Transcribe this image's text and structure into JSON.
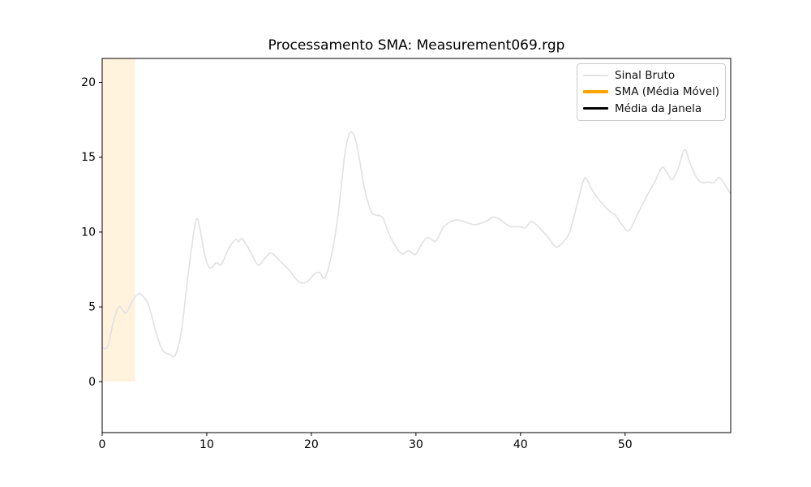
{
  "chart_data": {
    "type": "line",
    "title": "Processamento SMA: Measurement069.rgp",
    "xlabel": "",
    "ylabel": "",
    "xlim": [
      0,
      60.1
    ],
    "ylim": [
      -3.4,
      21.6
    ],
    "x_ticks": [
      0,
      10,
      20,
      30,
      40,
      50
    ],
    "y_ticks": [
      0,
      5,
      10,
      15,
      20
    ],
    "grid": false,
    "axis_color": "#000000",
    "legend": {
      "position": "upper right",
      "entries": [
        {
          "label": "Sinal Bruto",
          "color": "#e2e2e2",
          "thickness": 2
        },
        {
          "label": "SMA (Média Móvel)",
          "color": "#ffa500",
          "thickness": 4
        },
        {
          "label": "Média da Janela",
          "color": "#000000",
          "thickness": 3
        }
      ]
    },
    "window_band": {
      "x0": 0,
      "x1": 3.15,
      "y0": 0,
      "y1": 21.6,
      "color": "#ffa500",
      "opacity": 0.13
    },
    "series": [
      {
        "name": "Sinal Bruto",
        "color": "#e2e2e2",
        "width": 1.7,
        "points": [
          [
            0,
            2.3
          ],
          [
            0.25,
            2.2
          ],
          [
            0.6,
            2.5
          ],
          [
            1.1,
            4.1
          ],
          [
            1.6,
            5.0
          ],
          [
            2.0,
            4.75
          ],
          [
            2.3,
            4.6
          ],
          [
            2.9,
            5.4
          ],
          [
            3.5,
            5.9
          ],
          [
            3.9,
            5.7
          ],
          [
            4.3,
            5.35
          ],
          [
            4.7,
            4.5
          ],
          [
            5.1,
            3.4
          ],
          [
            5.5,
            2.55
          ],
          [
            5.9,
            2.0
          ],
          [
            6.4,
            1.85
          ],
          [
            7.0,
            1.8
          ],
          [
            7.6,
            3.5
          ],
          [
            8.1,
            6.5
          ],
          [
            8.6,
            9.2
          ],
          [
            9.0,
            10.85
          ],
          [
            9.35,
            10.2
          ],
          [
            9.8,
            8.5
          ],
          [
            10.3,
            7.6
          ],
          [
            10.9,
            7.95
          ],
          [
            11.4,
            7.85
          ],
          [
            12.1,
            8.9
          ],
          [
            12.75,
            9.5
          ],
          [
            13.05,
            9.35
          ],
          [
            13.4,
            9.55
          ],
          [
            14.2,
            8.65
          ],
          [
            14.9,
            7.8
          ],
          [
            15.5,
            8.2
          ],
          [
            16.1,
            8.6
          ],
          [
            16.6,
            8.35
          ],
          [
            17.1,
            8.0
          ],
          [
            17.9,
            7.45
          ],
          [
            18.6,
            6.8
          ],
          [
            19.1,
            6.6
          ],
          [
            19.7,
            6.75
          ],
          [
            20.3,
            7.2
          ],
          [
            20.8,
            7.3
          ],
          [
            21.3,
            6.95
          ],
          [
            22.0,
            8.7
          ],
          [
            22.6,
            11.4
          ],
          [
            23.2,
            15.2
          ],
          [
            23.6,
            16.5
          ],
          [
            23.9,
            16.65
          ],
          [
            24.2,
            16.25
          ],
          [
            24.6,
            14.9
          ],
          [
            25.0,
            13.2
          ],
          [
            25.5,
            11.8
          ],
          [
            25.9,
            11.2
          ],
          [
            26.5,
            11.1
          ],
          [
            26.9,
            10.85
          ],
          [
            27.5,
            9.75
          ],
          [
            28.2,
            8.9
          ],
          [
            28.7,
            8.55
          ],
          [
            29.3,
            8.75
          ],
          [
            29.9,
            8.5
          ],
          [
            30.4,
            9.0
          ],
          [
            30.9,
            9.55
          ],
          [
            31.3,
            9.6
          ],
          [
            31.9,
            9.4
          ],
          [
            32.6,
            10.3
          ],
          [
            33.2,
            10.65
          ],
          [
            33.8,
            10.8
          ],
          [
            34.4,
            10.75
          ],
          [
            35.0,
            10.6
          ],
          [
            35.6,
            10.5
          ],
          [
            36.3,
            10.6
          ],
          [
            36.9,
            10.8
          ],
          [
            37.4,
            11.0
          ],
          [
            38.0,
            10.85
          ],
          [
            38.9,
            10.4
          ],
          [
            39.4,
            10.35
          ],
          [
            40.0,
            10.35
          ],
          [
            40.5,
            10.3
          ],
          [
            41.1,
            10.7
          ],
          [
            42.2,
            10.0
          ],
          [
            42.8,
            9.5
          ],
          [
            43.4,
            9.0
          ],
          [
            44.1,
            9.35
          ],
          [
            44.7,
            10.0
          ],
          [
            45.4,
            11.8
          ],
          [
            46.0,
            13.4
          ],
          [
            46.3,
            13.55
          ],
          [
            46.9,
            12.75
          ],
          [
            47.7,
            12.0
          ],
          [
            48.5,
            11.4
          ],
          [
            49.1,
            11.1
          ],
          [
            49.8,
            10.4
          ],
          [
            50.4,
            10.1
          ],
          [
            51.2,
            11.2
          ],
          [
            52.0,
            12.3
          ],
          [
            52.8,
            13.3
          ],
          [
            53.5,
            14.3
          ],
          [
            54.0,
            14.0
          ],
          [
            54.5,
            13.5
          ],
          [
            55.1,
            14.3
          ],
          [
            55.7,
            15.5
          ],
          [
            56.2,
            14.6
          ],
          [
            56.8,
            13.7
          ],
          [
            57.3,
            13.3
          ],
          [
            57.9,
            13.35
          ],
          [
            58.5,
            13.3
          ],
          [
            59.0,
            13.65
          ],
          [
            59.6,
            13.1
          ],
          [
            60.05,
            12.6
          ]
        ]
      },
      {
        "name": "SMA (Média Móvel)",
        "color": "#ffa500",
        "width": 2.5,
        "points": []
      },
      {
        "name": "Média da Janela",
        "color": "#000000",
        "width": 2.0,
        "points": []
      }
    ]
  }
}
